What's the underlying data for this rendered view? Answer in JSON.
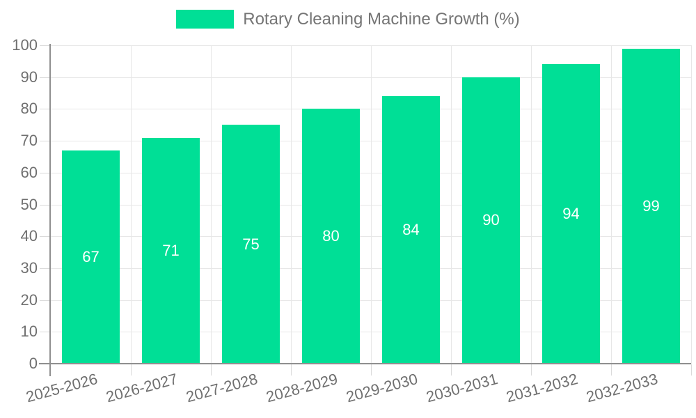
{
  "chart_data": {
    "type": "bar",
    "title": "Rotary Cleaning Machine Growth (%)",
    "legend": {
      "position": "top-center",
      "label": "Rotary Cleaning Machine Growth (%)"
    },
    "categories": [
      "2025-2026",
      "2026-2027",
      "2027-2028",
      "2028-2029",
      "2029-2030",
      "2030-2031",
      "2031-2032",
      "2032-2033"
    ],
    "values": [
      67,
      71,
      75,
      80,
      84,
      90,
      94,
      99
    ],
    "value_labels_shown": true,
    "xlabel": "",
    "ylabel": "",
    "ylim": [
      0,
      100
    ],
    "ytick_step": 10,
    "yticks": [
      0,
      10,
      20,
      30,
      40,
      50,
      60,
      70,
      80,
      90,
      100
    ],
    "grid": "horizontal and vertical",
    "x_label_rotation_deg": -15,
    "colors": {
      "bar": "#00DF96",
      "value_label": "#ffffff",
      "axis_text": "#6f6f6f",
      "legend_text": "#757575",
      "grid_line": "#e7e7e7",
      "tick_mark": "#dadada",
      "axis_line": "#8f8f8f",
      "background": "#ffffff"
    }
  }
}
